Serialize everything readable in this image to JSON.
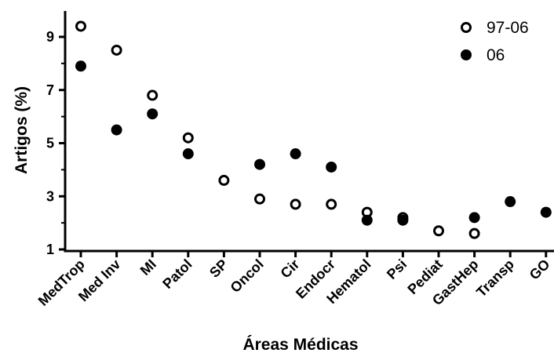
{
  "chart_data": {
    "type": "scatter",
    "xlabel": "Áreas Médicas",
    "ylabel": "Artigos (%)",
    "ylim": [
      1,
      10
    ],
    "yticks": [
      1,
      3,
      5,
      7,
      9
    ],
    "categories": [
      "MedTrop",
      "Med Inv",
      "MI",
      "Patol",
      "SP",
      "Oncol",
      "Cir",
      "Endocr",
      "Hematol",
      "Psi",
      "Pediat",
      "GastHep",
      "Transp",
      "GO"
    ],
    "series": [
      {
        "name": "97-06",
        "marker": "open-circle",
        "color": "#000000",
        "values": [
          9.4,
          8.5,
          6.8,
          5.2,
          3.6,
          2.9,
          2.7,
          2.7,
          2.4,
          2.2,
          1.7,
          1.6,
          null,
          null
        ]
      },
      {
        "name": "06",
        "marker": "filled-circle",
        "color": "#000000",
        "values": [
          7.9,
          5.5,
          6.1,
          4.6,
          null,
          4.2,
          4.6,
          4.1,
          2.1,
          2.1,
          null,
          2.2,
          2.8,
          2.4
        ]
      }
    ],
    "grid": false,
    "legend": "top-right"
  }
}
